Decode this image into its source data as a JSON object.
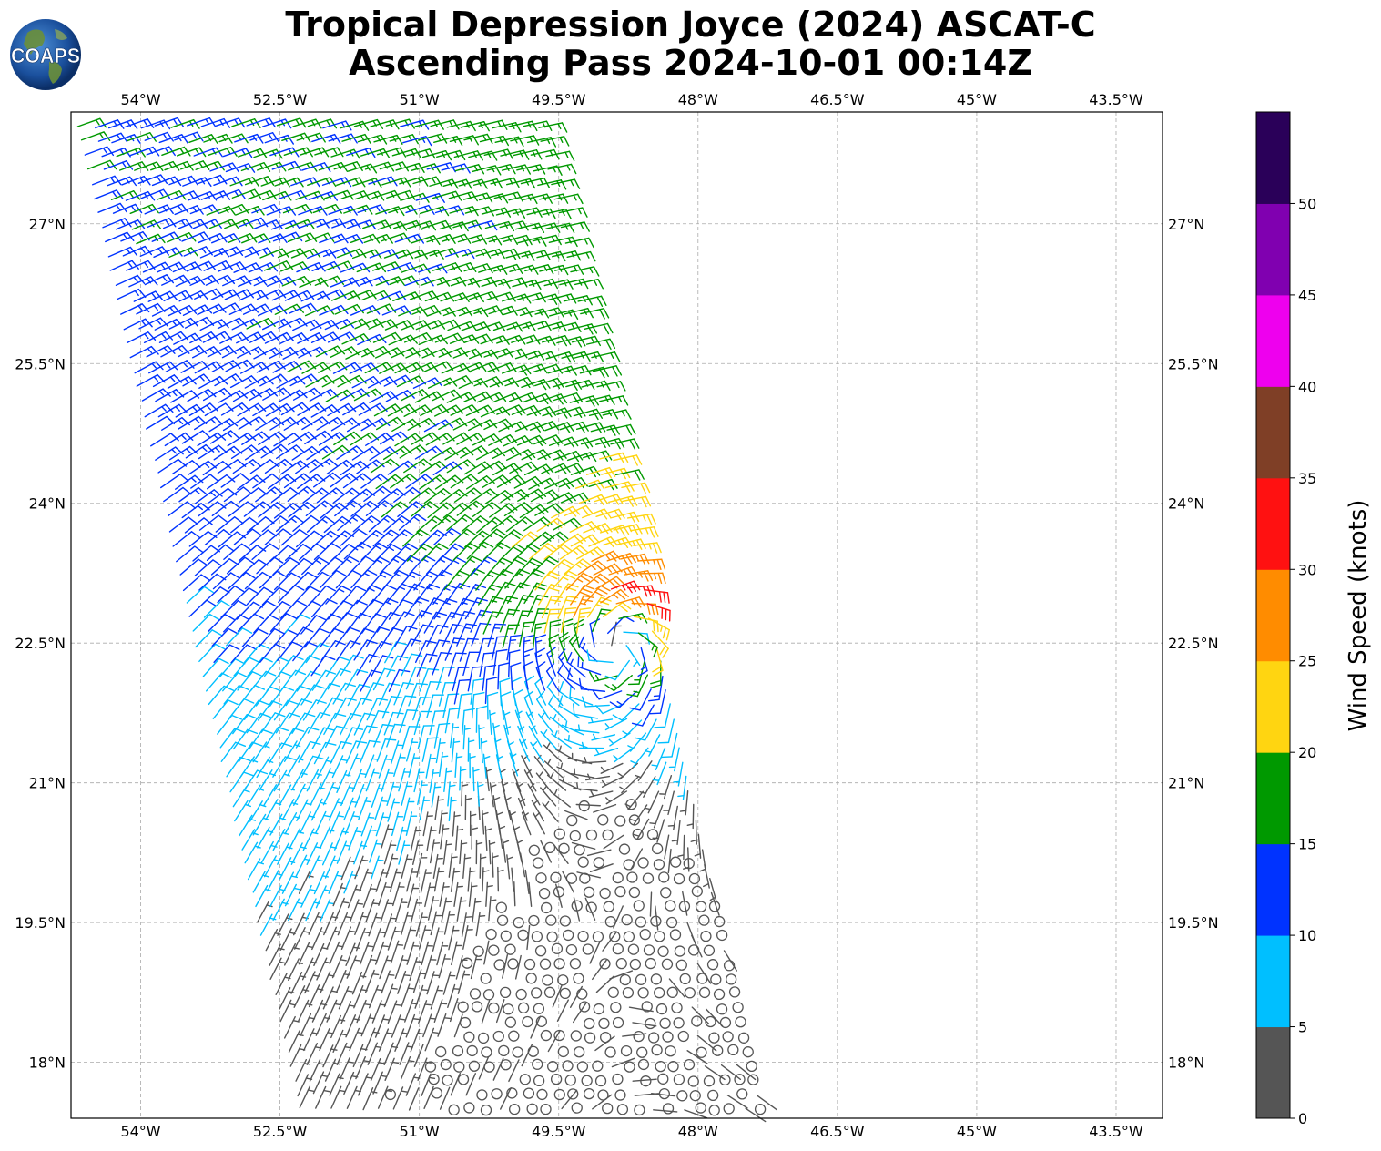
{
  "title": {
    "line1": "Tropical Depression Joyce (2024) ASCAT-C",
    "line2": "Ascending Pass 2024-10-01 00:14Z"
  },
  "logo": {
    "text": "COAPS",
    "icon": "globe-icon"
  },
  "map": {
    "lon_range": [
      -54.75,
      -43.0
    ],
    "lat_range": [
      17.4,
      28.2
    ],
    "lon_ticks": [
      {
        "value": -54.0,
        "label": "54°W"
      },
      {
        "value": -52.5,
        "label": "52.5°W"
      },
      {
        "value": -51.0,
        "label": "51°W"
      },
      {
        "value": -49.5,
        "label": "49.5°W"
      },
      {
        "value": -48.0,
        "label": "48°W"
      },
      {
        "value": -46.5,
        "label": "46.5°W"
      },
      {
        "value": -45.0,
        "label": "45°W"
      },
      {
        "value": -43.5,
        "label": "43.5°W"
      }
    ],
    "lat_ticks": [
      {
        "value": 27.0,
        "label": "27°N"
      },
      {
        "value": 25.5,
        "label": "25.5°N"
      },
      {
        "value": 24.0,
        "label": "24°N"
      },
      {
        "value": 22.5,
        "label": "22.5°N"
      },
      {
        "value": 21.0,
        "label": "21°N"
      },
      {
        "value": 19.5,
        "label": "19.5°N"
      },
      {
        "value": 18.0,
        "label": "18°N"
      }
    ],
    "grid": true,
    "swath": {
      "north_lat": 28.2,
      "south_lat": 17.4,
      "west_lon_at_north": -54.75,
      "west_lon_at_south": -52.3,
      "east_lon_at_north": -49.6,
      "east_lon_at_south": -47.3
    },
    "storm_center": {
      "lon": -48.85,
      "lat": 22.6
    }
  },
  "colorbar": {
    "label": "Wind Speed (knots)",
    "bins": [
      {
        "min": 0,
        "max": 5,
        "color": "#555555"
      },
      {
        "min": 5,
        "max": 10,
        "color": "#00bfff"
      },
      {
        "min": 10,
        "max": 15,
        "color": "#0033ff"
      },
      {
        "min": 15,
        "max": 20,
        "color": "#009900"
      },
      {
        "min": 20,
        "max": 25,
        "color": "#ffd511"
      },
      {
        "min": 25,
        "max": 30,
        "color": "#ff8c00"
      },
      {
        "min": 30,
        "max": 35,
        "color": "#ff1111"
      },
      {
        "min": 35,
        "max": 40,
        "color": "#7f3f26"
      },
      {
        "min": 40,
        "max": 45,
        "color": "#ee00ee"
      },
      {
        "min": 45,
        "max": 50,
        "color": "#8000b0"
      },
      {
        "min": 50,
        "max": 55,
        "color": "#2a0059"
      }
    ],
    "ticks": [
      {
        "value": 0,
        "label": "0"
      },
      {
        "value": 5,
        "label": "5"
      },
      {
        "value": 10,
        "label": "10"
      },
      {
        "value": 15,
        "label": "15"
      },
      {
        "value": 20,
        "label": "20"
      },
      {
        "value": 25,
        "label": "25"
      },
      {
        "value": 30,
        "label": "30"
      },
      {
        "value": 35,
        "label": "35"
      },
      {
        "value": 40,
        "label": "40"
      },
      {
        "value": 45,
        "label": "45"
      },
      {
        "value": 50,
        "label": "50"
      }
    ]
  }
}
